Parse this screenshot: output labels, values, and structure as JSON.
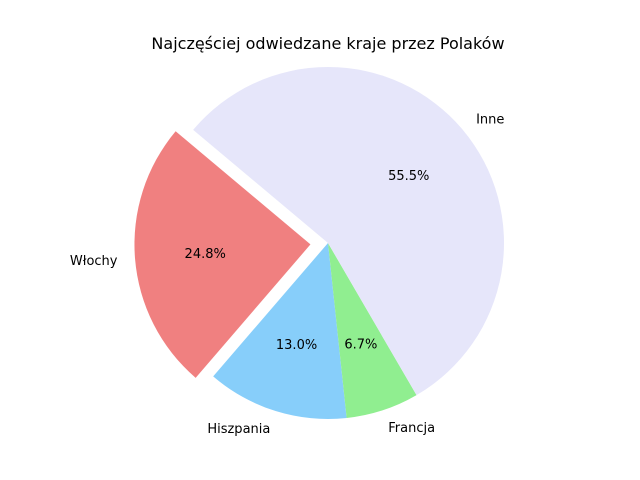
{
  "chart_data": {
    "type": "pie",
    "title": "Najczęściej odwiedzane kraje przez Polaków",
    "slices": [
      {
        "label": "Włochy",
        "percent_label": "24.8%",
        "value": 24.8,
        "color": "#f08080",
        "exploded": true
      },
      {
        "label": "Hiszpania",
        "percent_label": "13.0%",
        "value": 13.0,
        "color": "#87cefa",
        "exploded": false
      },
      {
        "label": "Francja",
        "percent_label": "6.7%",
        "value": 6.7,
        "color": "#90ee90",
        "exploded": false
      },
      {
        "label": "Inne",
        "percent_label": "55.5%",
        "value": 55.5,
        "color": "#e6e6fa",
        "exploded": false
      }
    ],
    "start_angle_deg": 140,
    "direction": "counterclockwise"
  }
}
